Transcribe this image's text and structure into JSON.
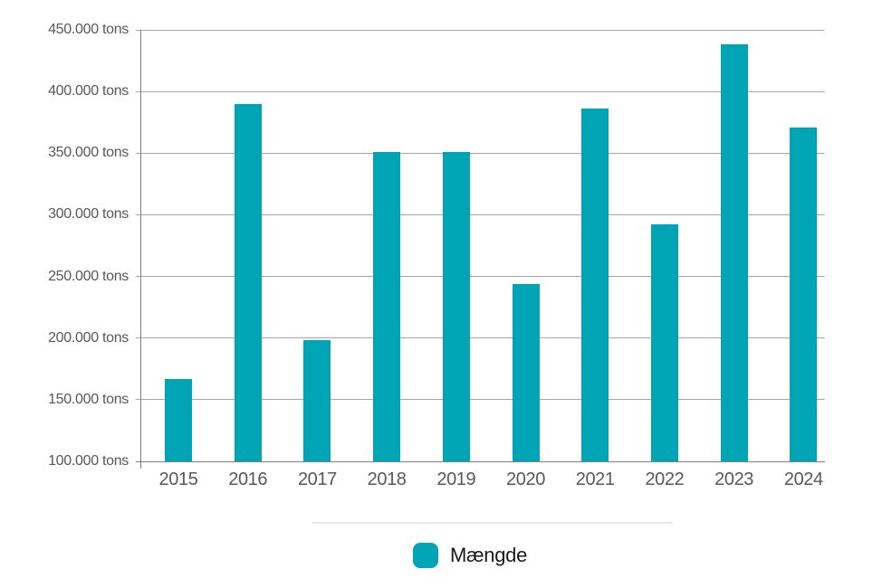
{
  "chart_data": {
    "type": "bar",
    "title": "",
    "categories": [
      "2015",
      "2016",
      "2017",
      "2018",
      "2019",
      "2020",
      "2021",
      "2022",
      "2023",
      "2024"
    ],
    "series": [
      {
        "name": "Mængde",
        "color": "#00a5b5",
        "values": [
          167000,
          390000,
          198000,
          351000,
          351000,
          244000,
          386000,
          292000,
          438000,
          371000
        ]
      }
    ],
    "xlabel": "",
    "ylabel": "",
    "ylim": [
      100000,
      450000
    ],
    "ytick_step": 50000,
    "ytick_labels": [
      "100.000 tons",
      "150.000 tons",
      "200.000 tons",
      "250.000 tons",
      "300.000 tons",
      "350.000 tons",
      "400.000 tons",
      "450.000 tons"
    ],
    "grid": true,
    "legend_position": "bottom"
  },
  "legend": {
    "items": [
      {
        "label": "Mængde",
        "color": "#00a5b5"
      }
    ]
  },
  "colors": {
    "bar": "#00a5b5",
    "grid_line": "#a6a6a6",
    "axis_line": "#808080",
    "tick_label": "#58585a",
    "legend_text": "#1a1a1a",
    "divider": "#e8e8e8",
    "background": "#ffffff"
  }
}
